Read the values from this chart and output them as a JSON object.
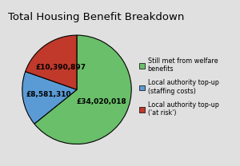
{
  "title": "Total Housing Benefit Breakdown",
  "values": [
    34020018,
    8581310,
    10390897
  ],
  "labels": [
    "£34,020,018",
    "£8,581,310",
    "£10,390,897"
  ],
  "colors": [
    "#6abf6a",
    "#5b9bd5",
    "#c0392b"
  ],
  "legend_labels": [
    "Still met from welfare\nbenefits",
    "Local authority top-up\n(staffing costs)",
    "Local authority top-up\n('at risk')"
  ],
  "background_color": "#e0e0e0",
  "startangle": 90,
  "title_fontsize": 9.5,
  "label_fontsize": 6.5,
  "legend_fontsize": 5.8
}
